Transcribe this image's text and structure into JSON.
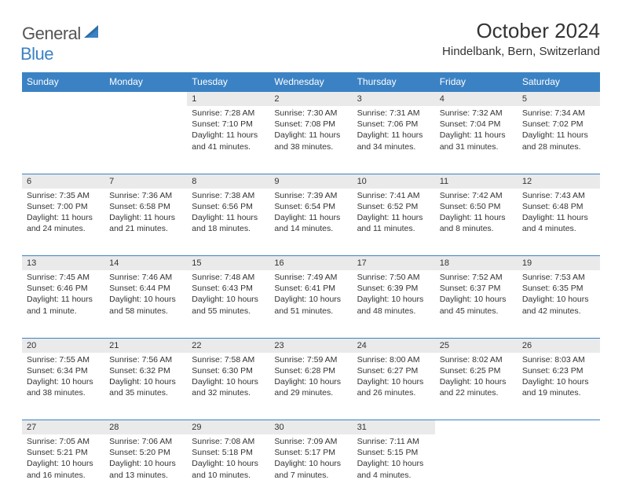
{
  "brand": {
    "text1": "General",
    "text2": "Blue"
  },
  "title": "October 2024",
  "location": "Hindelbank, Bern, Switzerland",
  "colors": {
    "accent": "#3b82c4",
    "daynum_bg": "#eaeaea",
    "text": "#333333",
    "bg": "#ffffff"
  },
  "daysOfWeek": [
    "Sunday",
    "Monday",
    "Tuesday",
    "Wednesday",
    "Thursday",
    "Friday",
    "Saturday"
  ],
  "weeks": [
    [
      null,
      null,
      {
        "n": "1",
        "sr": "Sunrise: 7:28 AM",
        "ss": "Sunset: 7:10 PM",
        "dl": "Daylight: 11 hours and 41 minutes."
      },
      {
        "n": "2",
        "sr": "Sunrise: 7:30 AM",
        "ss": "Sunset: 7:08 PM",
        "dl": "Daylight: 11 hours and 38 minutes."
      },
      {
        "n": "3",
        "sr": "Sunrise: 7:31 AM",
        "ss": "Sunset: 7:06 PM",
        "dl": "Daylight: 11 hours and 34 minutes."
      },
      {
        "n": "4",
        "sr": "Sunrise: 7:32 AM",
        "ss": "Sunset: 7:04 PM",
        "dl": "Daylight: 11 hours and 31 minutes."
      },
      {
        "n": "5",
        "sr": "Sunrise: 7:34 AM",
        "ss": "Sunset: 7:02 PM",
        "dl": "Daylight: 11 hours and 28 minutes."
      }
    ],
    [
      {
        "n": "6",
        "sr": "Sunrise: 7:35 AM",
        "ss": "Sunset: 7:00 PM",
        "dl": "Daylight: 11 hours and 24 minutes."
      },
      {
        "n": "7",
        "sr": "Sunrise: 7:36 AM",
        "ss": "Sunset: 6:58 PM",
        "dl": "Daylight: 11 hours and 21 minutes."
      },
      {
        "n": "8",
        "sr": "Sunrise: 7:38 AM",
        "ss": "Sunset: 6:56 PM",
        "dl": "Daylight: 11 hours and 18 minutes."
      },
      {
        "n": "9",
        "sr": "Sunrise: 7:39 AM",
        "ss": "Sunset: 6:54 PM",
        "dl": "Daylight: 11 hours and 14 minutes."
      },
      {
        "n": "10",
        "sr": "Sunrise: 7:41 AM",
        "ss": "Sunset: 6:52 PM",
        "dl": "Daylight: 11 hours and 11 minutes."
      },
      {
        "n": "11",
        "sr": "Sunrise: 7:42 AM",
        "ss": "Sunset: 6:50 PM",
        "dl": "Daylight: 11 hours and 8 minutes."
      },
      {
        "n": "12",
        "sr": "Sunrise: 7:43 AM",
        "ss": "Sunset: 6:48 PM",
        "dl": "Daylight: 11 hours and 4 minutes."
      }
    ],
    [
      {
        "n": "13",
        "sr": "Sunrise: 7:45 AM",
        "ss": "Sunset: 6:46 PM",
        "dl": "Daylight: 11 hours and 1 minute."
      },
      {
        "n": "14",
        "sr": "Sunrise: 7:46 AM",
        "ss": "Sunset: 6:44 PM",
        "dl": "Daylight: 10 hours and 58 minutes."
      },
      {
        "n": "15",
        "sr": "Sunrise: 7:48 AM",
        "ss": "Sunset: 6:43 PM",
        "dl": "Daylight: 10 hours and 55 minutes."
      },
      {
        "n": "16",
        "sr": "Sunrise: 7:49 AM",
        "ss": "Sunset: 6:41 PM",
        "dl": "Daylight: 10 hours and 51 minutes."
      },
      {
        "n": "17",
        "sr": "Sunrise: 7:50 AM",
        "ss": "Sunset: 6:39 PM",
        "dl": "Daylight: 10 hours and 48 minutes."
      },
      {
        "n": "18",
        "sr": "Sunrise: 7:52 AM",
        "ss": "Sunset: 6:37 PM",
        "dl": "Daylight: 10 hours and 45 minutes."
      },
      {
        "n": "19",
        "sr": "Sunrise: 7:53 AM",
        "ss": "Sunset: 6:35 PM",
        "dl": "Daylight: 10 hours and 42 minutes."
      }
    ],
    [
      {
        "n": "20",
        "sr": "Sunrise: 7:55 AM",
        "ss": "Sunset: 6:34 PM",
        "dl": "Daylight: 10 hours and 38 minutes."
      },
      {
        "n": "21",
        "sr": "Sunrise: 7:56 AM",
        "ss": "Sunset: 6:32 PM",
        "dl": "Daylight: 10 hours and 35 minutes."
      },
      {
        "n": "22",
        "sr": "Sunrise: 7:58 AM",
        "ss": "Sunset: 6:30 PM",
        "dl": "Daylight: 10 hours and 32 minutes."
      },
      {
        "n": "23",
        "sr": "Sunrise: 7:59 AM",
        "ss": "Sunset: 6:28 PM",
        "dl": "Daylight: 10 hours and 29 minutes."
      },
      {
        "n": "24",
        "sr": "Sunrise: 8:00 AM",
        "ss": "Sunset: 6:27 PM",
        "dl": "Daylight: 10 hours and 26 minutes."
      },
      {
        "n": "25",
        "sr": "Sunrise: 8:02 AM",
        "ss": "Sunset: 6:25 PM",
        "dl": "Daylight: 10 hours and 22 minutes."
      },
      {
        "n": "26",
        "sr": "Sunrise: 8:03 AM",
        "ss": "Sunset: 6:23 PM",
        "dl": "Daylight: 10 hours and 19 minutes."
      }
    ],
    [
      {
        "n": "27",
        "sr": "Sunrise: 7:05 AM",
        "ss": "Sunset: 5:21 PM",
        "dl": "Daylight: 10 hours and 16 minutes."
      },
      {
        "n": "28",
        "sr": "Sunrise: 7:06 AM",
        "ss": "Sunset: 5:20 PM",
        "dl": "Daylight: 10 hours and 13 minutes."
      },
      {
        "n": "29",
        "sr": "Sunrise: 7:08 AM",
        "ss": "Sunset: 5:18 PM",
        "dl": "Daylight: 10 hours and 10 minutes."
      },
      {
        "n": "30",
        "sr": "Sunrise: 7:09 AM",
        "ss": "Sunset: 5:17 PM",
        "dl": "Daylight: 10 hours and 7 minutes."
      },
      {
        "n": "31",
        "sr": "Sunrise: 7:11 AM",
        "ss": "Sunset: 5:15 PM",
        "dl": "Daylight: 10 hours and 4 minutes."
      },
      null,
      null
    ]
  ]
}
